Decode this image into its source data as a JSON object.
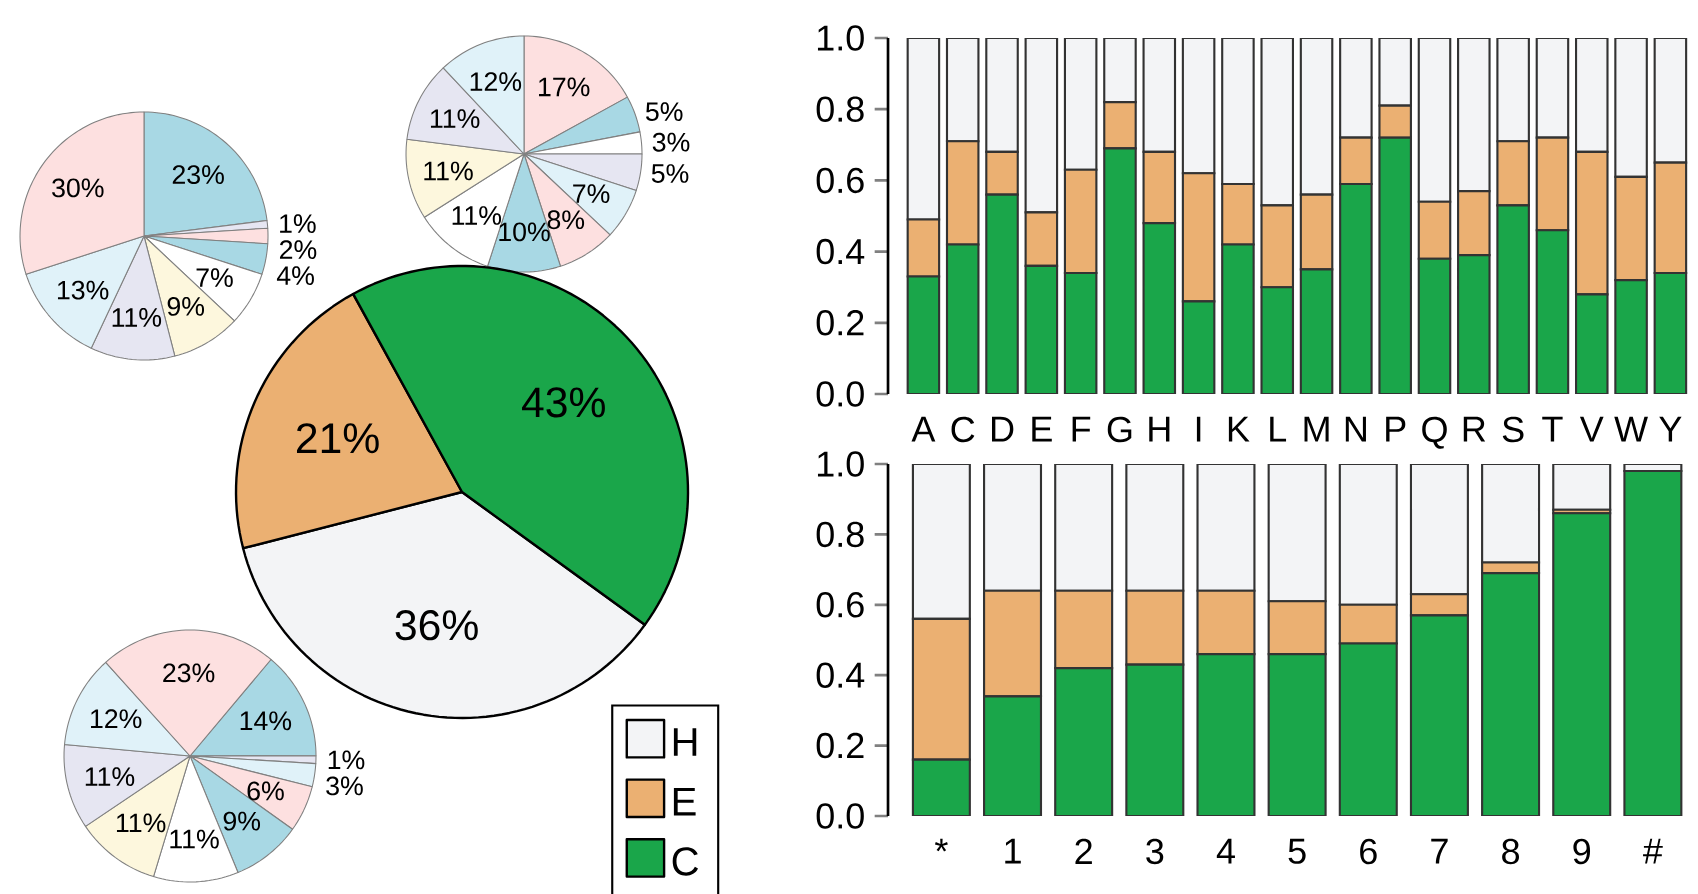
{
  "chart_data": [
    {
      "type": "pie",
      "categories": [
        null,
        null,
        null,
        null,
        null,
        null,
        null,
        null,
        null
      ],
      "values": [
        23,
        1,
        2,
        4,
        7,
        9,
        11,
        13,
        30
      ],
      "value_labels": [
        "23%",
        "1%",
        "2%",
        "4%",
        "7%",
        "9%",
        "11%",
        "13%",
        "30%"
      ],
      "colors": [
        "#a8d8e4",
        "#e6e6f2",
        "#fde0e0",
        "#a8d8e4",
        "#ffffff",
        "#fdf7dd",
        "#e6e6f2",
        "#e0f2f9",
        "#fde0e0"
      ]
    },
    {
      "type": "pie",
      "categories": [
        null,
        null,
        null,
        null,
        null,
        null,
        null,
        null,
        null,
        null,
        null
      ],
      "values": [
        17,
        5,
        3,
        5,
        7,
        8,
        10,
        11,
        11,
        11,
        12
      ],
      "value_labels": [
        "17%",
        "5%",
        "3%",
        "5%",
        "7%",
        "8%",
        "10%",
        "11%",
        "11%",
        "11%",
        "12%"
      ],
      "colors": [
        "#fde0e0",
        "#a8d8e4",
        "#ffffff",
        "#e6e6f2",
        "#e0f2f9",
        "#fde0e0",
        "#a8d8e4",
        "#ffffff",
        "#fdf7dd",
        "#e6e6f2",
        "#e0f2f9"
      ]
    },
    {
      "type": "pie",
      "categories": [
        "H",
        "E",
        "C"
      ],
      "values": [
        36,
        21,
        43
      ],
      "value_labels": [
        "36%",
        "21%",
        "43%"
      ],
      "colors": [
        "#f3f4f6",
        "#ebb072",
        "#1aa64a"
      ],
      "legend": "bottom right"
    },
    {
      "type": "pie",
      "categories": [
        null,
        null,
        null,
        null,
        null,
        null,
        null,
        null,
        null,
        null
      ],
      "values": [
        14,
        1,
        3,
        6,
        9,
        11,
        11,
        11,
        12,
        23
      ],
      "value_labels": [
        "14%",
        "1%",
        "3%",
        "6%",
        "9%",
        "11%",
        "11%",
        "11%",
        "12%",
        "23%"
      ],
      "colors": [
        "#a8d8e4",
        "#e6e6f2",
        "#e0f2f9",
        "#fde0e0",
        "#a8d8e4",
        "#ffffff",
        "#fdf7dd",
        "#e6e6f2",
        "#e0f2f9",
        "#fde0e0"
      ]
    },
    {
      "type": "bar",
      "stacked": true,
      "categories": [
        "A",
        "C",
        "D",
        "E",
        "F",
        "G",
        "H",
        "I",
        "K",
        "L",
        "M",
        "N",
        "P",
        "Q",
        "R",
        "S",
        "T",
        "V",
        "W",
        "Y"
      ],
      "series": [
        {
          "color": "#1aa64a",
          "values": [
            0.33,
            0.42,
            0.56,
            0.36,
            0.34,
            0.69,
            0.48,
            0.26,
            0.42,
            0.3,
            0.35,
            0.59,
            0.72,
            0.38,
            0.39,
            0.53,
            0.46,
            0.28,
            0.32,
            0.34
          ]
        },
        {
          "color": "#ebb072",
          "values": [
            0.16,
            0.29,
            0.12,
            0.15,
            0.29,
            0.13,
            0.2,
            0.36,
            0.17,
            0.23,
            0.21,
            0.13,
            0.09,
            0.16,
            0.18,
            0.18,
            0.26,
            0.4,
            0.29,
            0.31
          ]
        },
        {
          "color": "#f3f4f6",
          "values": [
            0.51,
            0.29,
            0.32,
            0.49,
            0.37,
            0.18,
            0.32,
            0.38,
            0.41,
            0.47,
            0.44,
            0.28,
            0.19,
            0.46,
            0.43,
            0.29,
            0.28,
            0.32,
            0.39,
            0.35
          ]
        }
      ],
      "ylim": [
        0,
        1
      ],
      "yticks": [
        {
          "value": 0,
          "label": "0.0"
        },
        {
          "value": 0.2,
          "label": "0.2"
        },
        {
          "value": 0.4,
          "label": "0.4"
        },
        {
          "value": 0.6,
          "label": "0.6"
        },
        {
          "value": 0.8,
          "label": "0.8"
        },
        {
          "value": 1,
          "label": "1.0"
        }
      ]
    },
    {
      "type": "bar",
      "stacked": true,
      "categories": [
        "*",
        "1",
        "2",
        "3",
        "4",
        "5",
        "6",
        "7",
        "8",
        "9",
        "#"
      ],
      "series": [
        {
          "color": "#1aa64a",
          "values": [
            0.16,
            0.34,
            0.42,
            0.43,
            0.46,
            0.46,
            0.49,
            0.57,
            0.69,
            0.86,
            0.98
          ]
        },
        {
          "color": "#ebb072",
          "values": [
            0.4,
            0.3,
            0.22,
            0.21,
            0.18,
            0.15,
            0.11,
            0.06,
            0.03,
            0.01,
            null
          ]
        },
        {
          "color": "#f3f4f6",
          "values": [
            0.44,
            0.36,
            0.36,
            0.36,
            0.36,
            0.39,
            0.4,
            0.37,
            0.28,
            0.13,
            0.02
          ]
        }
      ],
      "ylim": [
        0,
        1
      ],
      "yticks": [
        {
          "value": 0,
          "label": "0.0"
        },
        {
          "value": 0.2,
          "label": "0.2"
        },
        {
          "value": 0.4,
          "label": "0.4"
        },
        {
          "value": 0.6,
          "label": "0.6"
        },
        {
          "value": 0.8,
          "label": "0.8"
        },
        {
          "value": 1,
          "label": "1.0"
        }
      ]
    }
  ]
}
